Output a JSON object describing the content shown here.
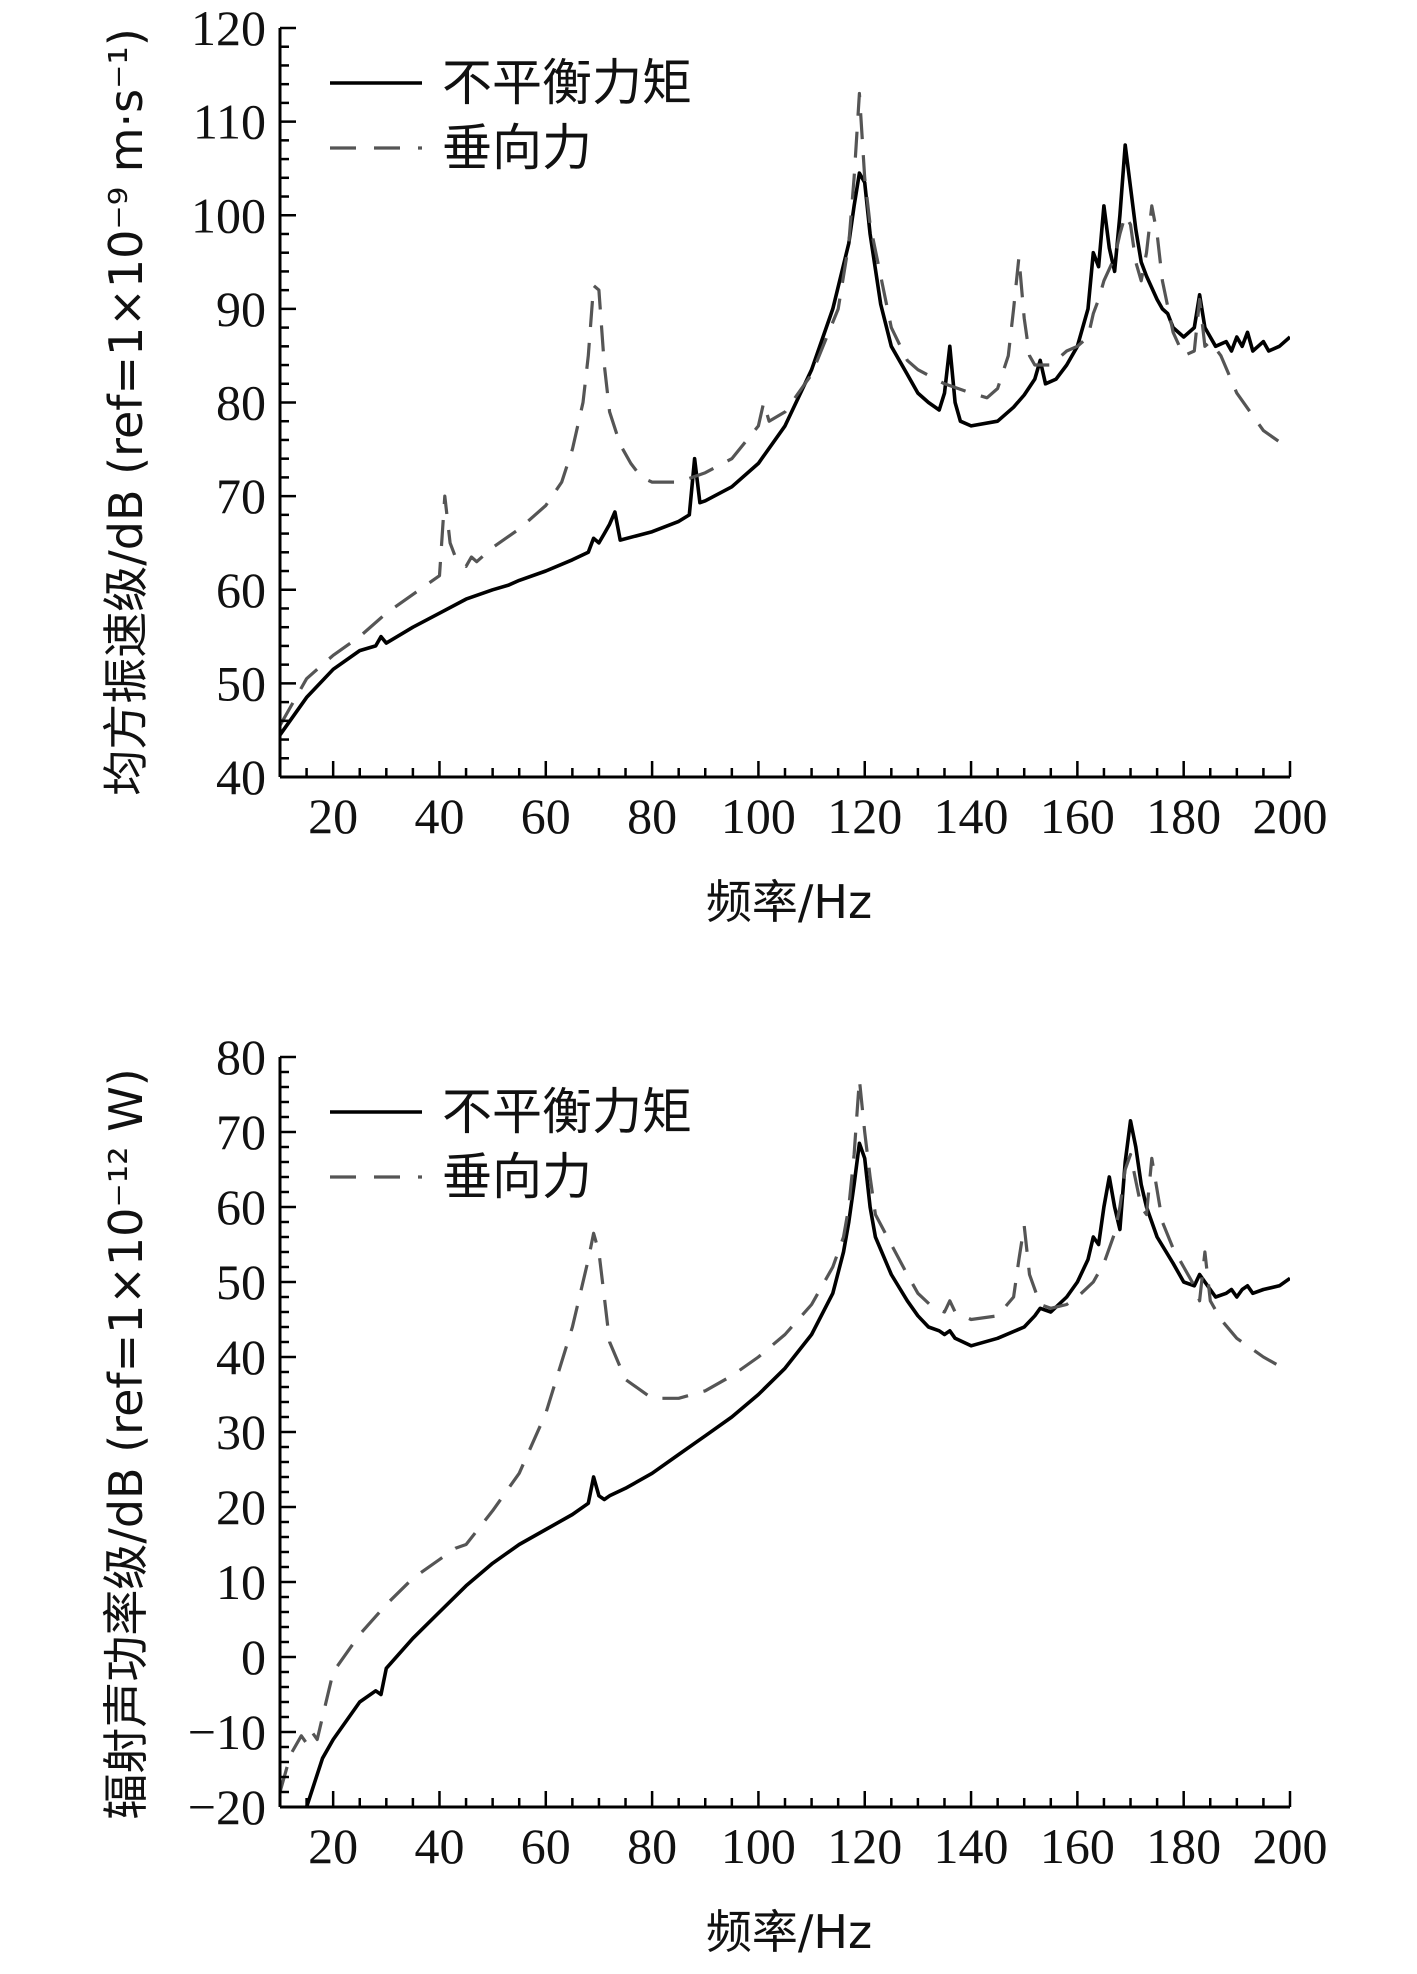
{
  "chart_data": [
    {
      "type": "line",
      "title": "",
      "xlabel": "频率/Hz",
      "ylabel": "均方振速级/dB (ref=1×10⁻⁹ m·s⁻¹)",
      "xlim": [
        10,
        200
      ],
      "ylim": [
        40,
        120
      ],
      "x_ticks": [
        20,
        40,
        60,
        80,
        100,
        120,
        140,
        160,
        180,
        200
      ],
      "y_ticks": [
        40,
        50,
        60,
        70,
        80,
        90,
        100,
        110,
        120
      ],
      "legend": [
        "不平衡力矩",
        "垂向力"
      ],
      "legend_position": "top-left",
      "series": [
        {
          "name": "不平衡力矩",
          "style": "solid",
          "color": "#000000",
          "x": [
            10,
            15,
            20,
            25,
            28,
            29,
            30,
            35,
            40,
            45,
            50,
            53,
            55,
            60,
            65,
            68,
            69,
            70,
            71,
            72,
            73,
            74,
            80,
            85,
            87,
            88,
            89,
            90,
            95,
            100,
            105,
            110,
            114,
            117,
            118,
            119,
            120,
            121,
            123,
            125,
            128,
            130,
            132,
            134,
            135,
            136,
            137,
            138,
            140,
            145,
            148,
            150,
            152,
            153,
            154,
            156,
            158,
            160,
            162,
            163,
            164,
            165,
            166,
            167,
            168,
            169,
            170,
            171,
            172,
            173,
            175,
            176,
            177,
            178,
            180,
            182,
            183,
            184,
            186,
            188,
            189,
            190,
            191,
            192,
            193,
            194,
            195,
            196,
            198,
            200
          ],
          "values": [
            44.5,
            48.5,
            51.5,
            53.5,
            54.0,
            55.0,
            54.3,
            56.0,
            57.5,
            59.0,
            60.0,
            60.5,
            61.0,
            62.0,
            63.2,
            64.0,
            65.5,
            65.0,
            66.0,
            67.0,
            68.3,
            65.3,
            66.2,
            67.3,
            68.0,
            74.0,
            69.3,
            69.5,
            71.0,
            73.5,
            77.5,
            83.5,
            90.0,
            97.0,
            101.0,
            104.5,
            103.5,
            98.0,
            90.5,
            86.0,
            83.0,
            81.0,
            80.0,
            79.2,
            81.0,
            86.0,
            80.0,
            78.0,
            77.5,
            78.0,
            79.5,
            80.8,
            82.5,
            84.5,
            82.0,
            82.5,
            84.0,
            86.0,
            90.0,
            96.0,
            94.5,
            101.0,
            96.5,
            94.0,
            100.0,
            107.5,
            103.0,
            98.5,
            95.0,
            93.5,
            91.0,
            90.0,
            89.5,
            88.0,
            87.0,
            88.0,
            91.5,
            88.0,
            86.0,
            86.5,
            85.5,
            87.0,
            86.0,
            87.5,
            85.5,
            86.0,
            86.5,
            85.5,
            86.0,
            87.0
          ]
        },
        {
          "name": "垂向力",
          "style": "dashed",
          "color": "#555555",
          "x": [
            10,
            15,
            17,
            18,
            20,
            25,
            30,
            35,
            40,
            41,
            42,
            43,
            45,
            46,
            47,
            50,
            55,
            60,
            63,
            65,
            67,
            68,
            69,
            70,
            71,
            72,
            74,
            76,
            78,
            80,
            85,
            90,
            95,
            100,
            101,
            102,
            105,
            110,
            115,
            117,
            118,
            119,
            120,
            121,
            123,
            125,
            128,
            130,
            135,
            140,
            143,
            145,
            147,
            148,
            149,
            150,
            151,
            152,
            155,
            158,
            160,
            162,
            163,
            164,
            165,
            167,
            168,
            169,
            170,
            171,
            172,
            173,
            174,
            175,
            176,
            178,
            180,
            182,
            183,
            184,
            185,
            187,
            190,
            195,
            200
          ],
          "values": [
            45.5,
            50.5,
            51.5,
            52.0,
            53.0,
            55.0,
            57.5,
            59.5,
            61.5,
            70.0,
            65.0,
            63.5,
            62.5,
            63.5,
            63.0,
            64.5,
            66.5,
            69.0,
            71.5,
            75.0,
            80.0,
            85.0,
            92.5,
            92.0,
            84.0,
            79.0,
            75.5,
            73.5,
            72.0,
            71.5,
            71.5,
            72.5,
            74.0,
            77.5,
            80.0,
            78.0,
            79.0,
            83.0,
            90.0,
            97.0,
            104.0,
            113.0,
            104.0,
            99.0,
            93.5,
            88.0,
            84.5,
            83.5,
            82.0,
            81.0,
            80.5,
            81.5,
            85.0,
            90.0,
            95.5,
            89.0,
            85.0,
            84.0,
            84.0,
            85.5,
            86.0,
            87.0,
            89.5,
            91.0,
            93.0,
            95.5,
            98.0,
            100.0,
            99.0,
            95.0,
            93.0,
            96.0,
            101.0,
            98.0,
            93.0,
            87.5,
            85.0,
            85.5,
            91.0,
            86.0,
            86.5,
            85.0,
            81.0,
            77.0,
            75.0
          ]
        }
      ]
    },
    {
      "type": "line",
      "title": "",
      "xlabel": "频率/Hz",
      "ylabel": "辐射声功率级/dB (ref=1×10⁻¹² W)",
      "xlim": [
        10,
        200
      ],
      "ylim": [
        -20,
        80
      ],
      "x_ticks": [
        20,
        40,
        60,
        80,
        100,
        120,
        140,
        160,
        180,
        200
      ],
      "y_ticks": [
        -20,
        -10,
        0,
        10,
        20,
        30,
        40,
        50,
        60,
        70,
        80
      ],
      "legend": [
        "不平衡力矩",
        "垂向力"
      ],
      "legend_position": "top-left",
      "series": [
        {
          "name": "不平衡力矩",
          "style": "solid",
          "color": "#000000",
          "x": [
            15,
            18,
            20,
            25,
            28,
            29,
            30,
            35,
            40,
            45,
            50,
            55,
            60,
            65,
            68,
            69,
            70,
            71,
            72,
            75,
            80,
            85,
            88,
            90,
            95,
            100,
            105,
            110,
            114,
            116,
            117,
            118,
            119,
            120,
            121,
            122,
            125,
            128,
            130,
            132,
            134,
            135,
            136,
            137,
            140,
            145,
            150,
            152,
            153,
            155,
            158,
            160,
            162,
            163,
            164,
            165,
            166,
            167,
            168,
            169,
            170,
            171,
            172,
            173,
            175,
            178,
            180,
            182,
            183,
            184,
            186,
            188,
            189,
            190,
            191,
            192,
            193,
            195,
            198,
            200
          ],
          "values": [
            -20.0,
            -13.5,
            -11.0,
            -6.0,
            -4.5,
            -5.0,
            -1.5,
            2.5,
            6.0,
            9.5,
            12.5,
            15.0,
            17.0,
            19.0,
            20.5,
            24.0,
            21.5,
            21.0,
            21.5,
            22.5,
            24.5,
            27.0,
            28.5,
            29.5,
            32.0,
            35.0,
            38.5,
            43.0,
            48.5,
            54.0,
            58.0,
            63.0,
            68.5,
            66.5,
            60.0,
            56.0,
            51.0,
            47.5,
            45.5,
            44.0,
            43.5,
            43.0,
            43.5,
            42.5,
            41.5,
            42.5,
            44.0,
            45.5,
            46.5,
            46.0,
            48.0,
            50.0,
            53.0,
            56.0,
            55.0,
            60.0,
            64.0,
            60.0,
            57.0,
            66.0,
            71.5,
            68.0,
            63.0,
            60.0,
            56.0,
            52.5,
            50.0,
            49.5,
            51.0,
            50.0,
            48.0,
            48.5,
            49.0,
            48.0,
            49.0,
            49.5,
            48.5,
            49.0,
            49.5,
            50.5
          ]
        },
        {
          "name": "垂向力",
          "style": "dashed",
          "color": "#555555",
          "x": [
            10,
            12,
            14,
            15,
            16,
            17,
            18,
            20,
            25,
            30,
            35,
            40,
            43,
            45,
            50,
            55,
            60,
            65,
            68,
            69,
            70,
            71,
            72,
            75,
            80,
            85,
            90,
            95,
            100,
            105,
            110,
            114,
            116,
            117,
            118,
            119,
            120,
            121,
            122,
            125,
            128,
            130,
            133,
            135,
            136,
            137,
            140,
            145,
            148,
            149,
            150,
            151,
            153,
            155,
            158,
            160,
            163,
            165,
            167,
            168,
            169,
            170,
            171,
            172,
            173,
            174,
            176,
            178,
            180,
            182,
            183,
            184,
            185,
            187,
            190,
            195,
            200
          ],
          "values": [
            -18.0,
            -13.0,
            -10.5,
            -11.5,
            -10.0,
            -11.0,
            -8.0,
            -2.0,
            3.0,
            7.0,
            10.5,
            13.0,
            14.5,
            15.0,
            19.5,
            24.5,
            32.5,
            44.0,
            53.0,
            56.5,
            54.0,
            48.0,
            42.0,
            37.0,
            34.5,
            34.5,
            35.5,
            37.5,
            40.0,
            43.0,
            47.0,
            52.0,
            56.0,
            60.0,
            67.0,
            77.0,
            70.0,
            64.0,
            59.0,
            55.0,
            51.0,
            48.5,
            46.5,
            46.0,
            47.5,
            46.0,
            45.0,
            45.5,
            48.0,
            53.0,
            57.5,
            51.0,
            47.0,
            46.5,
            47.0,
            48.0,
            50.0,
            52.5,
            56.5,
            60.0,
            65.0,
            67.0,
            63.5,
            60.0,
            59.0,
            66.5,
            58.0,
            54.5,
            52.0,
            49.5,
            47.5,
            54.0,
            47.5,
            45.0,
            42.5,
            40.0,
            38.0
          ]
        }
      ]
    }
  ]
}
